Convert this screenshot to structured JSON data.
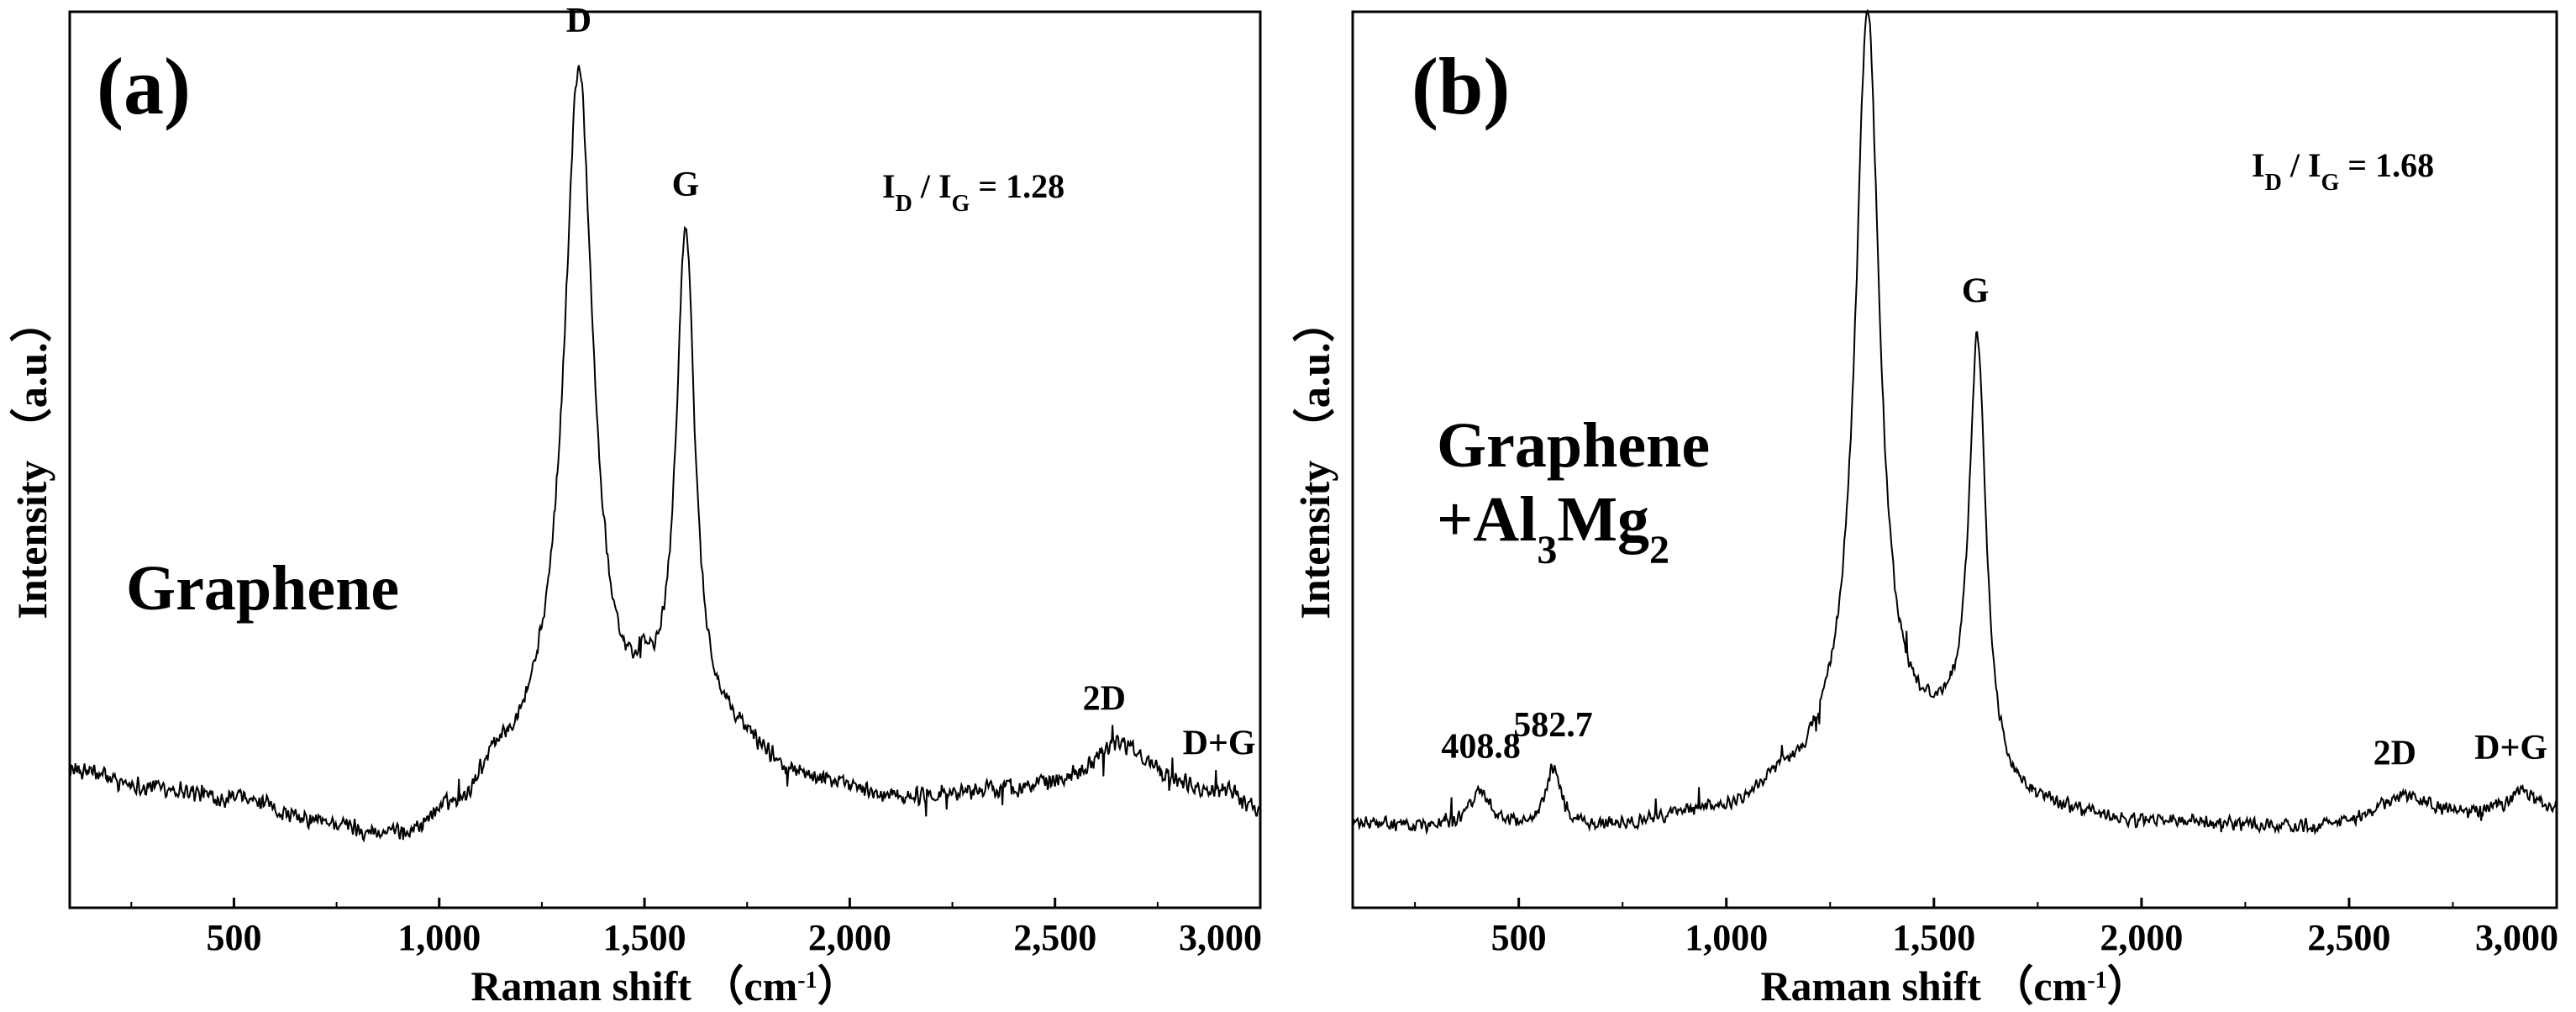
{
  "chart_data": [
    {
      "type": "line",
      "panel_label": "(a)",
      "sample_label": [
        "Graphene"
      ],
      "xlabel": "Raman shift",
      "xlabel_unit": {
        "open": "（cm",
        "sup": "-1",
        "close": "）"
      },
      "ylabel": "Intensity （a.u.）",
      "xlim": [
        100,
        3000
      ],
      "ylim": [
        0,
        100
      ],
      "xticks": [
        500,
        1000,
        1500,
        2000,
        2500,
        3000
      ],
      "xtick_labels": [
        "500",
        "1,000",
        "1,500",
        "2,000",
        "2,500",
        "3,000"
      ],
      "ratio": {
        "I": "I",
        "D": "D",
        "slash": " / ",
        "G": "G",
        "value": "= 1.28"
      },
      "annotations": [
        {
          "text": "D",
          "x": 1340
        },
        {
          "text": "G",
          "x": 1600
        },
        {
          "text": "2D",
          "x": 2620
        },
        {
          "text": "D+G",
          "x": 2900
        }
      ],
      "series": [
        {
          "name": "Graphene",
          "baseline_points": [
            [
              100,
              10.5
            ],
            [
              300,
              8.5
            ],
            [
              500,
              7.0
            ],
            [
              700,
              4.0
            ],
            [
              900,
              2.0
            ],
            [
              1050,
              5.5
            ],
            [
              1150,
              11.0
            ],
            [
              1300,
              14.0
            ],
            [
              1500,
              13.5
            ],
            [
              1700,
              13.5
            ],
            [
              1900,
              9.0
            ],
            [
              2100,
              7.0
            ],
            [
              2400,
              8.0
            ],
            [
              2700,
              9.5
            ],
            [
              3000,
              5.0
            ]
          ],
          "peaks": [
            {
              "center": 1340,
              "height": 82.0,
              "width": 42
            },
            {
              "center": 1600,
              "height": 61.0,
              "width": 28
            },
            {
              "center": 1500,
              "height": 3.5,
              "width": 18
            },
            {
              "center": 2650,
              "height": 4.5,
              "width": 70
            },
            {
              "center": 2920,
              "height": 2.5,
              "width": 40
            }
          ],
          "noise": 1.3
        }
      ]
    },
    {
      "type": "line",
      "panel_label": "(b)",
      "sample_label": [
        "Graphene",
        "+Al",
        "3",
        "Mg",
        "2"
      ],
      "xlabel": "Raman shift",
      "xlabel_unit": {
        "open": "（cm",
        "sup": "-1",
        "close": "）"
      },
      "ylabel": "Intensity （a.u.）",
      "xlim": [
        100,
        3000
      ],
      "ylim": [
        0,
        100
      ],
      "xticks": [
        500,
        1000,
        1500,
        2000,
        2500,
        3000
      ],
      "xtick_labels": [
        "500",
        "1,000",
        "1,500",
        "2,000",
        "2,500",
        "3,000"
      ],
      "ratio": {
        "I": "I",
        "D": "D",
        "slash": " / ",
        "G": "G",
        "value": "= 1.68"
      },
      "annotations": [
        {
          "text": "408.8",
          "x": 408.8
        },
        {
          "text": "582.7",
          "x": 582.7
        },
        {
          "text": "D",
          "x": 1340
        },
        {
          "text": "G",
          "x": 1600
        },
        {
          "text": "2D",
          "x": 2610
        },
        {
          "text": "D+G",
          "x": 2890
        }
      ],
      "series": [
        {
          "name": "Graphene+Al3Mg2",
          "baseline_points": [
            [
              100,
              4.0
            ],
            [
              300,
              3.5
            ],
            [
              700,
              3.5
            ],
            [
              1000,
              5.5
            ],
            [
              1150,
              9.0
            ],
            [
              1300,
              12.0
            ],
            [
              1500,
              13.0
            ],
            [
              1700,
              6.0
            ],
            [
              2000,
              4.0
            ],
            [
              2400,
              3.5
            ],
            [
              2700,
              5.0
            ],
            [
              3000,
              5.5
            ]
          ],
          "peaks": [
            {
              "center": 1340,
              "height": 91.0,
              "width": 35
            },
            {
              "center": 1605,
              "height": 53.0,
              "width": 25
            },
            {
              "center": 408.8,
              "height": 4.5,
              "width": 30
            },
            {
              "center": 582.7,
              "height": 7.0,
              "width": 22
            },
            {
              "center": 2620,
              "height": 2.5,
              "width": 70
            },
            {
              "center": 2920,
              "height": 2.5,
              "width": 40
            }
          ],
          "noise": 1.0
        }
      ]
    }
  ]
}
